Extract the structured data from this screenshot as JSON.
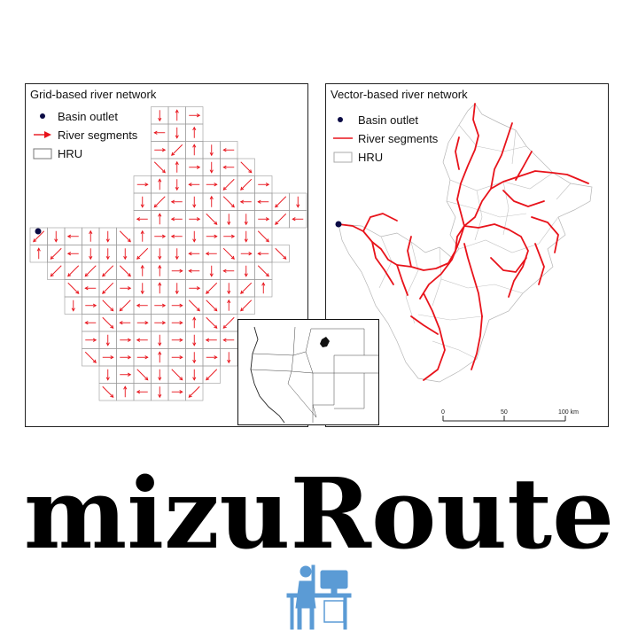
{
  "grid_panel": {
    "title": "Grid-based river network",
    "legend": {
      "outlet": "Basin outlet",
      "segments": "River segments",
      "hru": "HRU"
    }
  },
  "vector_panel": {
    "title": "Vector-based river network",
    "legend": {
      "outlet": "Basin outlet",
      "segments": "River segments",
      "hru": "HRU"
    },
    "scale_bar": {
      "labels": [
        "0",
        "50",
        "100 km"
      ]
    }
  },
  "brand": {
    "title": "mizuRoute"
  },
  "colors": {
    "river": "#e8131b",
    "outlet": "#0b0b45",
    "hru_outline": "#9a9a9a",
    "icon": "#5b9bd5"
  },
  "icons": {
    "desk": "person-at-computer-icon"
  }
}
